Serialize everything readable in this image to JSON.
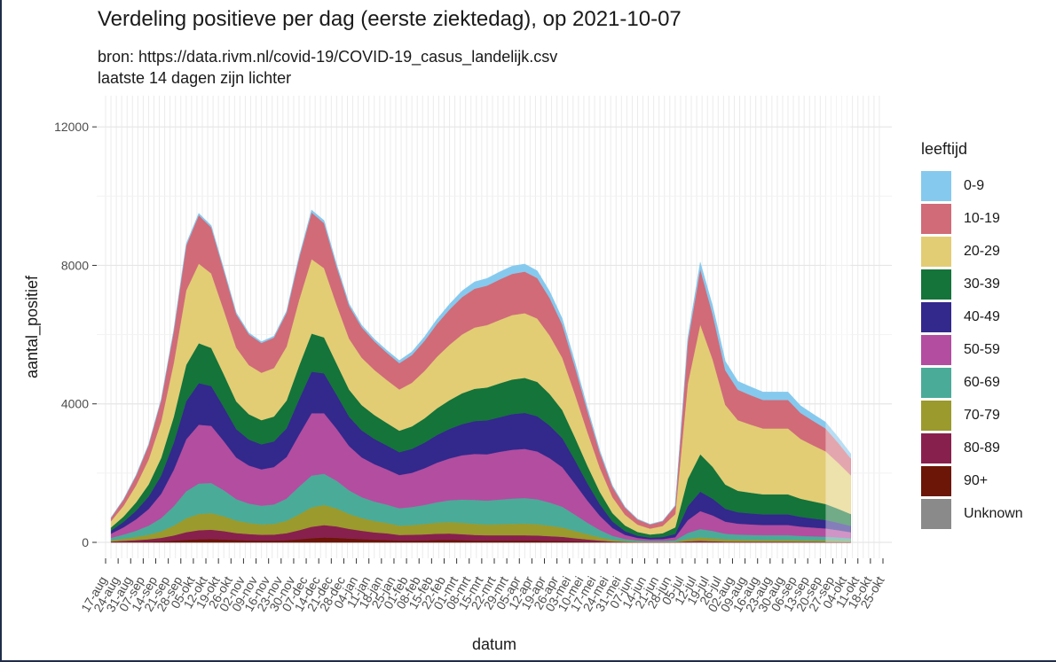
{
  "chart_data": {
    "type": "area",
    "title": "Verdeling positieve per dag (eerste ziektedag), op 2021-10-07",
    "subtitle_lines": [
      "bron: https://data.rivm.nl/covid-19/COVID-19_casus_landelijk.csv",
      "laatste 14 dagen zijn lichter"
    ],
    "xlabel": "datum",
    "ylabel": "aantal_positief",
    "ylim": [
      0,
      12900
    ],
    "yticks": [
      0,
      4000,
      8000,
      12000
    ],
    "ytick_labels": [
      "0",
      "4000",
      "8000",
      "12000"
    ],
    "x_start": "2020-08-17",
    "x_end": "2021-10-25",
    "xtick_dates": [
      "2020-08-17",
      "2020-08-24",
      "2020-08-31",
      "2020-09-07",
      "2020-09-14",
      "2020-09-21",
      "2020-09-28",
      "2020-10-05",
      "2020-10-12",
      "2020-10-19",
      "2020-10-26",
      "2020-11-02",
      "2020-11-09",
      "2020-11-16",
      "2020-11-23",
      "2020-11-30",
      "2020-12-07",
      "2020-12-14",
      "2020-12-21",
      "2020-12-28",
      "2021-01-04",
      "2021-01-11",
      "2021-01-18",
      "2021-01-25",
      "2021-02-01",
      "2021-02-08",
      "2021-02-15",
      "2021-02-22",
      "2021-03-01",
      "2021-03-08",
      "2021-03-15",
      "2021-03-22",
      "2021-03-29",
      "2021-04-05",
      "2021-04-12",
      "2021-04-19",
      "2021-04-26",
      "2021-05-03",
      "2021-05-10",
      "2021-05-17",
      "2021-05-24",
      "2021-05-31",
      "2021-06-07",
      "2021-06-14",
      "2021-06-21",
      "2021-06-28",
      "2021-07-05",
      "2021-07-12",
      "2021-07-19",
      "2021-07-26",
      "2021-08-02",
      "2021-08-09",
      "2021-08-16",
      "2021-08-23",
      "2021-08-30",
      "2021-09-06",
      "2021-09-13",
      "2021-09-20",
      "2021-09-27",
      "2021-10-04",
      "2021-10-11",
      "2021-10-18",
      "2021-10-25"
    ],
    "xtick_labels": [
      "17-aug",
      "24-aug",
      "31-aug",
      "07-sep",
      "14-sep",
      "21-sep",
      "28-sep",
      "05-okt",
      "12-okt",
      "19-okt",
      "26-okt",
      "02-nov",
      "09-nov",
      "16-nov",
      "23-nov",
      "30-nov",
      "07-dec",
      "14-dec",
      "21-dec",
      "28-dec",
      "04-jan",
      "11-jan",
      "18-jan",
      "25-jan",
      "01-feb",
      "08-feb",
      "15-feb",
      "22-feb",
      "01-mrt",
      "08-mrt",
      "15-mrt",
      "22-mrt",
      "29-mrt",
      "05-apr",
      "12-apr",
      "19-apr",
      "26-apr",
      "03-mei",
      "10-mei",
      "17-mei",
      "24-mei",
      "31-mei",
      "07-jun",
      "14-jun",
      "21-jun",
      "28-jun",
      "05-jul",
      "12-jul",
      "19-jul",
      "26-jul",
      "02-aug",
      "09-aug",
      "16-aug",
      "23-aug",
      "30-aug",
      "06-sep",
      "13-sep",
      "20-sep",
      "27-sep",
      "04-okt",
      "11-okt",
      "18-okt",
      "25-okt"
    ],
    "x": [
      "2020-08-20",
      "2020-08-27",
      "2020-09-03",
      "2020-09-10",
      "2020-09-17",
      "2020-09-24",
      "2020-10-01",
      "2020-10-08",
      "2020-10-15",
      "2020-10-22",
      "2020-10-29",
      "2020-11-05",
      "2020-11-12",
      "2020-11-19",
      "2020-11-26",
      "2020-12-03",
      "2020-12-10",
      "2020-12-17",
      "2020-12-24",
      "2020-12-31",
      "2021-01-07",
      "2021-01-14",
      "2021-01-21",
      "2021-01-28",
      "2021-02-04",
      "2021-02-11",
      "2021-02-18",
      "2021-02-25",
      "2021-03-04",
      "2021-03-11",
      "2021-03-18",
      "2021-03-25",
      "2021-04-01",
      "2021-04-08",
      "2021-04-15",
      "2021-04-22",
      "2021-04-29",
      "2021-05-06",
      "2021-05-13",
      "2021-05-20",
      "2021-05-27",
      "2021-06-03",
      "2021-06-10",
      "2021-06-17",
      "2021-06-24",
      "2021-07-01",
      "2021-07-08",
      "2021-07-15",
      "2021-07-22",
      "2021-07-29",
      "2021-08-05",
      "2021-08-12",
      "2021-08-19",
      "2021-08-26",
      "2021-09-02",
      "2021-09-09",
      "2021-09-16",
      "2021-09-23",
      "2021-09-30",
      "2021-10-07"
    ],
    "series": [
      {
        "name": "Unknown",
        "color": "#8a8a8a",
        "values": [
          0,
          0,
          0,
          0,
          0,
          0,
          0,
          0,
          0,
          0,
          0,
          0,
          0,
          0,
          0,
          0,
          0,
          0,
          0,
          0,
          0,
          0,
          0,
          0,
          0,
          0,
          0,
          0,
          0,
          0,
          0,
          0,
          0,
          0,
          0,
          0,
          0,
          0,
          0,
          0,
          0,
          0,
          0,
          0,
          0,
          0,
          0,
          0,
          0,
          0,
          0,
          0,
          0,
          0,
          0,
          0,
          0,
          0,
          0,
          0
        ]
      },
      {
        "name": "90+",
        "color": "#6b1606",
        "values": [
          6,
          10,
          15,
          20,
          30,
          50,
          75,
          90,
          95,
          85,
          70,
          60,
          55,
          55,
          65,
          90,
          120,
          140,
          130,
          110,
          95,
          80,
          70,
          55,
          55,
          60,
          70,
          75,
          65,
          55,
          50,
          50,
          50,
          50,
          50,
          45,
          40,
          30,
          20,
          10,
          5,
          3,
          2,
          1,
          1,
          2,
          6,
          8,
          6,
          4,
          3,
          3,
          3,
          3,
          3,
          2,
          2,
          2,
          2,
          1
        ]
      },
      {
        "name": "80-89",
        "color": "#88204d",
        "values": [
          20,
          35,
          50,
          70,
          100,
          150,
          220,
          260,
          270,
          240,
          200,
          180,
          165,
          170,
          200,
          260,
          330,
          360,
          330,
          280,
          240,
          210,
          190,
          160,
          165,
          170,
          180,
          180,
          170,
          160,
          155,
          155,
          155,
          155,
          150,
          135,
          120,
          90,
          65,
          40,
          20,
          10,
          6,
          4,
          4,
          6,
          25,
          35,
          28,
          20,
          18,
          17,
          16,
          16,
          16,
          14,
          13,
          12,
          10,
          8
        ]
      },
      {
        "name": "70-79",
        "color": "#9b9a2c",
        "values": [
          35,
          60,
          90,
          130,
          190,
          280,
          400,
          470,
          480,
          430,
          360,
          320,
          300,
          310,
          360,
          460,
          560,
          580,
          520,
          430,
          370,
          330,
          300,
          270,
          280,
          300,
          320,
          330,
          330,
          320,
          310,
          320,
          330,
          335,
          325,
          300,
          270,
          210,
          150,
          95,
          50,
          25,
          15,
          10,
          10,
          15,
          70,
          100,
          85,
          65,
          58,
          55,
          53,
          53,
          53,
          48,
          45,
          42,
          36,
          30
        ]
      },
      {
        "name": "60-69",
        "color": "#4aab98",
        "values": [
          70,
          120,
          180,
          260,
          380,
          560,
          780,
          880,
          870,
          750,
          620,
          560,
          540,
          560,
          640,
          800,
          920,
          900,
          800,
          680,
          600,
          560,
          530,
          500,
          520,
          550,
          590,
          630,
          670,
          690,
          690,
          710,
          730,
          740,
          720,
          670,
          600,
          470,
          330,
          210,
          115,
          60,
          35,
          25,
          25,
          40,
          170,
          240,
          210,
          160,
          145,
          140,
          135,
          135,
          135,
          122,
          115,
          108,
          95,
          80
        ]
      },
      {
        "name": "50-59",
        "color": "#b34da0",
        "values": [
          120,
          210,
          330,
          480,
          700,
          1050,
          1500,
          1700,
          1650,
          1420,
          1200,
          1100,
          1050,
          1080,
          1200,
          1500,
          1800,
          1750,
          1500,
          1280,
          1150,
          1080,
          1020,
          960,
          990,
          1060,
          1140,
          1210,
          1280,
          1330,
          1340,
          1380,
          1410,
          1420,
          1380,
          1280,
          1140,
          900,
          640,
          410,
          225,
          120,
          70,
          50,
          55,
          85,
          370,
          520,
          450,
          350,
          315,
          305,
          295,
          295,
          295,
          270,
          252,
          237,
          207,
          175
        ]
      },
      {
        "name": "40-49",
        "color": "#33288c",
        "values": [
          90,
          160,
          250,
          360,
          530,
          780,
          1100,
          1200,
          1150,
          980,
          820,
          750,
          720,
          740,
          830,
          1020,
          1200,
          1150,
          980,
          850,
          780,
          730,
          690,
          660,
          690,
          740,
          800,
          850,
          900,
          950,
          980,
          1000,
          1030,
          1040,
          1020,
          940,
          840,
          680,
          500,
          330,
          190,
          110,
          65,
          48,
          58,
          95,
          400,
          560,
          480,
          370,
          330,
          318,
          308,
          308,
          308,
          280,
          262,
          246,
          215,
          182
        ]
      },
      {
        "name": "30-39",
        "color": "#14743a",
        "values": [
          90,
          150,
          240,
          350,
          510,
          750,
          1050,
          1150,
          1100,
          950,
          800,
          730,
          700,
          720,
          800,
          970,
          1100,
          1040,
          900,
          780,
          730,
          690,
          650,
          620,
          650,
          700,
          770,
          830,
          890,
          930,
          950,
          980,
          1000,
          1010,
          990,
          910,
          810,
          660,
          510,
          360,
          240,
          160,
          110,
          90,
          110,
          190,
          790,
          1080,
          920,
          700,
          620,
          598,
          578,
          578,
          578,
          525,
          493,
          462,
          404,
          342
        ]
      },
      {
        "name": "20-29",
        "color": "#e2cd75",
        "values": [
          180,
          310,
          490,
          720,
          1050,
          1550,
          2150,
          2300,
          2150,
          1850,
          1550,
          1420,
          1370,
          1400,
          1560,
          1900,
          2150,
          2000,
          1700,
          1470,
          1370,
          1300,
          1240,
          1190,
          1260,
          1370,
          1490,
          1600,
          1700,
          1770,
          1800,
          1830,
          1860,
          1870,
          1830,
          1690,
          1510,
          1250,
          970,
          690,
          460,
          310,
          210,
          170,
          210,
          380,
          2750,
          3750,
          3100,
          2300,
          2040,
          1967,
          1900,
          1900,
          1900,
          1725,
          1621,
          1520,
          1330,
          1120
        ]
      },
      {
        "name": "10-19",
        "color": "#d16b78",
        "values": [
          100,
          180,
          280,
          420,
          620,
          920,
          1300,
          1400,
          1330,
          1150,
          970,
          890,
          860,
          880,
          980,
          1210,
          1350,
          1300,
          1100,
          950,
          880,
          830,
          790,
          760,
          800,
          870,
          950,
          1020,
          1080,
          1120,
          1140,
          1170,
          1190,
          1200,
          1170,
          1080,
          960,
          790,
          610,
          440,
          300,
          210,
          150,
          120,
          140,
          240,
          1200,
          1600,
          1300,
          1000,
          880,
          852,
          824,
          824,
          824,
          750,
          705,
          660,
          578,
          488
        ]
      },
      {
        "name": "0-9",
        "color": "#86c9ee",
        "values": [
          10,
          15,
          20,
          25,
          30,
          40,
          50,
          55,
          55,
          50,
          45,
          40,
          40,
          40,
          45,
          55,
          70,
          75,
          70,
          60,
          60,
          65,
          70,
          80,
          95,
          115,
          135,
          155,
          180,
          200,
          210,
          220,
          225,
          220,
          210,
          190,
          170,
          140,
          100,
          60,
          35,
          20,
          12,
          8,
          10,
          20,
          120,
          200,
          240,
          260,
          245,
          240,
          232,
          232,
          232,
          210,
          198,
          185,
          162,
          137
        ]
      }
    ]
  }
}
